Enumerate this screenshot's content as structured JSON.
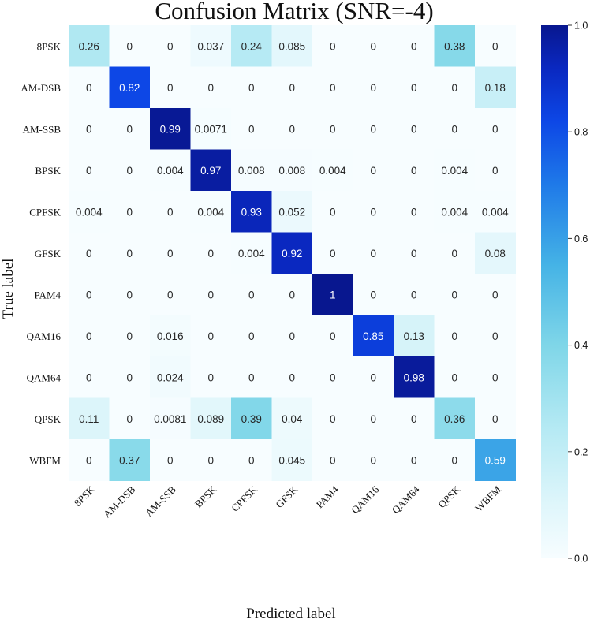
{
  "chart_data": {
    "type": "heatmap",
    "title": "Confusion Matrix (SNR=-4)",
    "xlabel": "Predicted label",
    "ylabel": "True label",
    "row_labels": [
      "8PSK",
      "AM-DSB",
      "AM-SSB",
      "BPSK",
      "CPFSK",
      "GFSK",
      "PAM4",
      "QAM16",
      "QAM64",
      "QPSK",
      "WBFM"
    ],
    "col_labels": [
      "8PSK",
      "AM-DSB",
      "AM-SSB",
      "BPSK",
      "CPFSK",
      "GFSK",
      "PAM4",
      "QAM16",
      "QAM64",
      "QPSK",
      "WBFM"
    ],
    "values": [
      [
        0.26,
        0,
        0,
        0.037,
        0.24,
        0.085,
        0,
        0,
        0,
        0.38,
        0
      ],
      [
        0,
        0.82,
        0,
        0,
        0,
        0,
        0,
        0,
        0,
        0,
        0.18
      ],
      [
        0,
        0,
        0.99,
        0.0071,
        0,
        0,
        0,
        0,
        0,
        0,
        0
      ],
      [
        0,
        0,
        0.004,
        0.97,
        0.008,
        0.008,
        0.004,
        0,
        0,
        0.004,
        0
      ],
      [
        0.004,
        0,
        0,
        0.004,
        0.93,
        0.052,
        0,
        0,
        0,
        0.004,
        0.004
      ],
      [
        0,
        0,
        0,
        0,
        0.004,
        0.92,
        0,
        0,
        0,
        0,
        0.08
      ],
      [
        0,
        0,
        0,
        0,
        0,
        0,
        1,
        0,
        0,
        0,
        0
      ],
      [
        0,
        0,
        0.016,
        0,
        0,
        0,
        0,
        0.85,
        0.13,
        0,
        0
      ],
      [
        0,
        0,
        0.024,
        0,
        0,
        0,
        0,
        0,
        0.98,
        0,
        0
      ],
      [
        0.11,
        0,
        0.0081,
        0.089,
        0.39,
        0.04,
        0,
        0,
        0,
        0.36,
        0
      ],
      [
        0,
        0.37,
        0,
        0,
        0,
        0.045,
        0,
        0,
        0,
        0,
        0.59
      ]
    ],
    "cell_text": [
      [
        "0.26",
        "0",
        "0",
        "0.037",
        "0.24",
        "0.085",
        "0",
        "0",
        "0",
        "0.38",
        "0"
      ],
      [
        "0",
        "0.82",
        "0",
        "0",
        "0",
        "0",
        "0",
        "0",
        "0",
        "0",
        "0.18"
      ],
      [
        "0",
        "0",
        "0.99",
        "0.0071",
        "0",
        "0",
        "0",
        "0",
        "0",
        "0",
        "0"
      ],
      [
        "0",
        "0",
        "0.004",
        "0.97",
        "0.008",
        "0.008",
        "0.004",
        "0",
        "0",
        "0.004",
        "0"
      ],
      [
        "0.004",
        "0",
        "0",
        "0.004",
        "0.93",
        "0.052",
        "0",
        "0",
        "0",
        "0.004",
        "0.004"
      ],
      [
        "0",
        "0",
        "0",
        "0",
        "0.004",
        "0.92",
        "0",
        "0",
        "0",
        "0",
        "0.08"
      ],
      [
        "0",
        "0",
        "0",
        "0",
        "0",
        "0",
        "1",
        "0",
        "0",
        "0",
        "0"
      ],
      [
        "0",
        "0",
        "0.016",
        "0",
        "0",
        "0",
        "0",
        "0.85",
        "0.13",
        "0",
        "0"
      ],
      [
        "0",
        "0",
        "0.024",
        "0",
        "0",
        "0",
        "0",
        "0",
        "0.98",
        "0",
        "0"
      ],
      [
        "0.11",
        "0",
        "0.0081",
        "0.089",
        "0.39",
        "0.04",
        "0",
        "0",
        "0",
        "0.36",
        "0"
      ],
      [
        "0",
        "0.37",
        "0",
        "0",
        "0",
        "0.045",
        "0",
        "0",
        "0",
        "0",
        "0.59"
      ]
    ],
    "colorbar": {
      "range": [
        0.0,
        1.0
      ],
      "ticks": [
        0.0,
        0.2,
        0.4,
        0.6,
        0.8,
        1.0
      ],
      "tick_labels": [
        "0.0",
        "0.2",
        "0.4",
        "0.6",
        "0.8",
        "1.0"
      ]
    },
    "colormap_stops": [
      {
        "v": 0.0,
        "color": "#f7fdff"
      },
      {
        "v": 0.1,
        "color": "#dff6fb"
      },
      {
        "v": 0.25,
        "color": "#b3e9f3"
      },
      {
        "v": 0.4,
        "color": "#7fd6e8"
      },
      {
        "v": 0.55,
        "color": "#45b3e6"
      },
      {
        "v": 0.7,
        "color": "#1f7ae8"
      },
      {
        "v": 0.82,
        "color": "#0d47e6"
      },
      {
        "v": 0.92,
        "color": "#0a28c0"
      },
      {
        "v": 1.0,
        "color": "#08178f"
      }
    ],
    "text_color_dark": "#262626",
    "text_color_light": "#ffffff"
  }
}
